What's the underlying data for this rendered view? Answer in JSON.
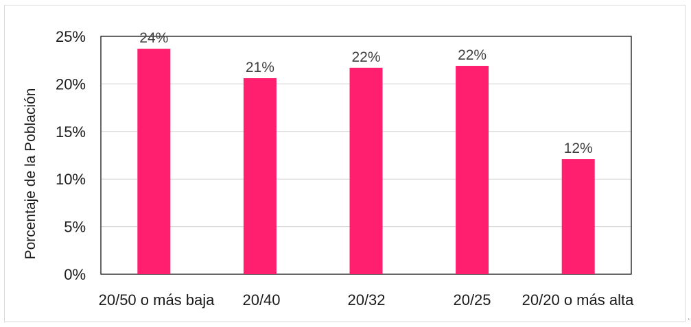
{
  "chart_data": {
    "type": "bar",
    "categories": [
      "20/50 o más baja",
      "20/40",
      "20/32",
      "20/25",
      "20/20 o más alta"
    ],
    "values": [
      23.7,
      20.6,
      21.7,
      21.9,
      12.1
    ],
    "data_labels": [
      "24%",
      "21%",
      "22%",
      "22%",
      "12%"
    ],
    "ylabel": "Porcentaje de la Población",
    "ylim": [
      0,
      25
    ],
    "yticks": [
      0,
      5,
      10,
      15,
      20,
      25
    ],
    "ytick_labels": [
      "0%",
      "5%",
      "10%",
      "15%",
      "20%",
      "25%"
    ],
    "grid": true,
    "bar_color": "#ff1f6e",
    "grid_color": "#d0d0d0",
    "legend": "none"
  }
}
